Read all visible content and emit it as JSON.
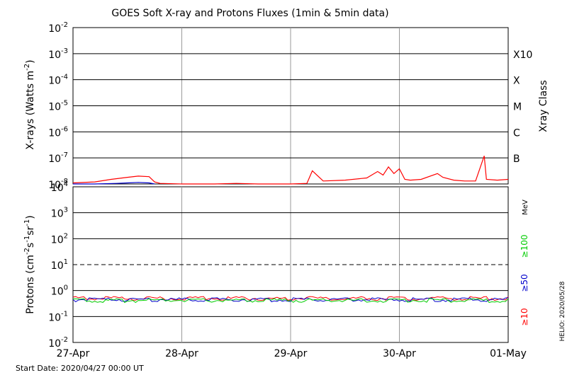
{
  "chart_data": [
    {
      "type": "line",
      "panel": "xray",
      "title": "GOES Soft X-ray and Protons Fluxes   (1min & 5min data)",
      "ylabel_prefix": "X-rays (Watts m",
      "ylabel_sup": "-2",
      "ylabel_suffix": ")",
      "yscale": "log",
      "ylim": [
        1e-08,
        0.01
      ],
      "yticks": [
        {
          "base": "10",
          "exp": "-2"
        },
        {
          "base": "10",
          "exp": "-3"
        },
        {
          "base": "10",
          "exp": "-4"
        },
        {
          "base": "10",
          "exp": "-5"
        },
        {
          "base": "10",
          "exp": "-6"
        },
        {
          "base": "10",
          "exp": "-7"
        },
        {
          "base": "10",
          "exp": "-8"
        }
      ],
      "right_axis_label": "Xray Class",
      "classes": [
        "X10",
        "X",
        "M",
        "C",
        "B"
      ],
      "grid": true,
      "series": [
        {
          "color": "#ff0000",
          "x_days": [
            0.0,
            0.2,
            0.35,
            0.5,
            0.6,
            0.7,
            0.75,
            0.8,
            1.0,
            1.3,
            1.5,
            1.7,
            1.9,
            2.0,
            2.15,
            2.2,
            2.3,
            2.5,
            2.7,
            2.8,
            2.85,
            2.9,
            2.95,
            3.0,
            3.05,
            3.1,
            3.2,
            3.35,
            3.4,
            3.5,
            3.6,
            3.7,
            3.78,
            3.8,
            3.9,
            4.0
          ],
          "y": [
            1.1e-08,
            1.2e-08,
            1.5e-08,
            1.8e-08,
            2e-08,
            1.9e-08,
            1.2e-08,
            1.05e-08,
            1e-08,
            1e-08,
            1.05e-08,
            1e-08,
            1e-08,
            1e-08,
            1.05e-08,
            3.2e-08,
            1.3e-08,
            1.4e-08,
            1.7e-08,
            3e-08,
            2.2e-08,
            4.5e-08,
            2.5e-08,
            3.8e-08,
            1.5e-08,
            1.4e-08,
            1.5e-08,
            2.5e-08,
            1.8e-08,
            1.4e-08,
            1.3e-08,
            1.3e-08,
            1.2e-07,
            1.5e-08,
            1.4e-08,
            1.5e-08
          ]
        },
        {
          "color": "#0000cc",
          "x_days": [
            0.0,
            0.2,
            0.4,
            0.5,
            0.6,
            0.7,
            0.75
          ],
          "y": [
            1e-08,
            1e-08,
            1.05e-08,
            1.1e-08,
            1.15e-08,
            1.1e-08,
            1e-08
          ]
        }
      ]
    },
    {
      "type": "line",
      "panel": "protons",
      "ylabel_prefix": "Protons (cm",
      "ylabel_sup1": "-2",
      "ylabel_mid": "s",
      "ylabel_sup2": "-1",
      "ylabel_mid2": "sr",
      "ylabel_sup3": "-1",
      "ylabel_suffix": ")",
      "yscale": "log",
      "ylim": [
        0.01,
        10000
      ],
      "yticks": [
        {
          "base": "10",
          "exp": "4"
        },
        {
          "base": "10",
          "exp": "3"
        },
        {
          "base": "10",
          "exp": "2"
        },
        {
          "base": "10",
          "exp": "1"
        },
        {
          "base": "10",
          "exp": "0"
        },
        {
          "base": "10",
          "exp": "-1"
        },
        {
          "base": "10",
          "exp": "-2"
        }
      ],
      "threshold": 10,
      "unit_label": "MeV",
      "energy_labels": [
        {
          "text": "≥100",
          "color": "#00cc00"
        },
        {
          "text": "≥50",
          "color": "#0000cc"
        },
        {
          "text": "≥10",
          "color": "#ff0000"
        }
      ],
      "series": [
        {
          "name": "≥10",
          "color": "#ff0000",
          "level": 0.5
        },
        {
          "name": "≥50",
          "color": "#0000cc",
          "level": 0.45
        },
        {
          "name": "≥100",
          "color": "#00cc00",
          "level": 0.42
        }
      ],
      "xticks": [
        "27-Apr",
        "28-Apr",
        "29-Apr",
        "30-Apr",
        "01-May"
      ]
    }
  ],
  "start_date": "Start Date: 2020/04/27 00:00 UT",
  "helio_stamp": "HELIO: 2020/05/28"
}
